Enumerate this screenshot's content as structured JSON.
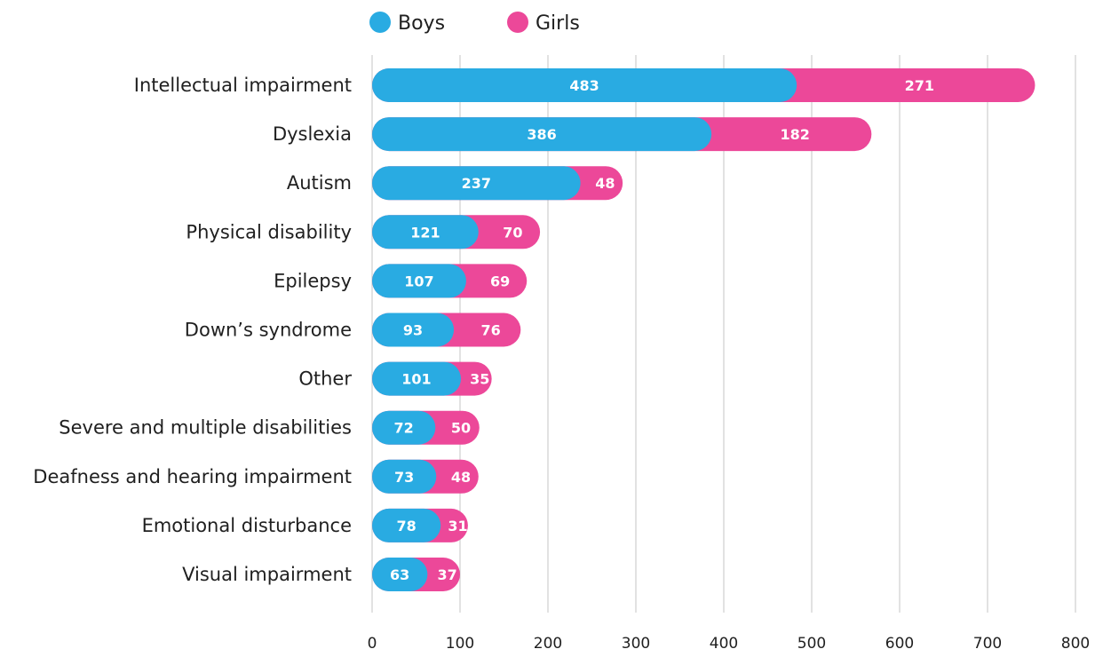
{
  "chart_data": {
    "type": "bar",
    "orientation": "horizontal",
    "stacked": true,
    "categories": [
      "Intellectual impairment",
      "Dyslexia",
      "Autism",
      "Physical disability",
      "Epilepsy",
      "Down’s syndrome",
      "Other",
      "Severe and multiple disabilities",
      "Deafness and hearing impairment",
      "Emotional disturbance",
      "Visual impairment"
    ],
    "series": [
      {
        "name": "Boys",
        "color": "#29abe2",
        "values": [
          483,
          386,
          237,
          121,
          107,
          93,
          101,
          72,
          73,
          78,
          63
        ]
      },
      {
        "name": "Girls",
        "color": "#ec4899",
        "values": [
          271,
          182,
          48,
          70,
          69,
          76,
          35,
          50,
          48,
          31,
          37
        ]
      }
    ],
    "title": "",
    "xlabel": "",
    "ylabel": "",
    "xlim": [
      0,
      800
    ],
    "xticks": [
      "0",
      "100",
      "200",
      "300",
      "400",
      "500",
      "600",
      "700",
      "800"
    ],
    "grid": "vertical",
    "legend": "top-center"
  }
}
